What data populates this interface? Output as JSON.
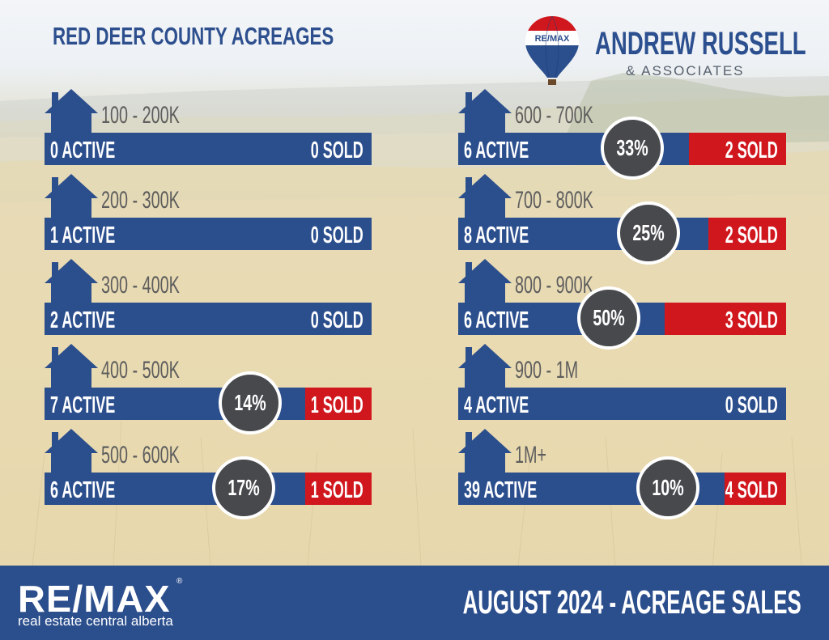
{
  "title": "RED DEER COUNTY ACREAGES",
  "brand": {
    "name": "ANDREW RUSSELL",
    "subtitle": "& ASSOCIATES",
    "balloon_text": "RE/MAX"
  },
  "rows": [
    {
      "range": "100 - 200K",
      "active": "0 ACTIVE",
      "sold": "0 SOLD",
      "percent": ""
    },
    {
      "range": "200 - 300K",
      "active": "1 ACTIVE",
      "sold": "0 SOLD",
      "percent": ""
    },
    {
      "range": "300 - 400K",
      "active": "2 ACTIVE",
      "sold": "0 SOLD",
      "percent": ""
    },
    {
      "range": "400 - 500K",
      "active": "7 ACTIVE",
      "sold": "1 SOLD",
      "percent": "14%"
    },
    {
      "range": "500 - 600K",
      "active": "6 ACTIVE",
      "sold": "1 SOLD",
      "percent": "17%"
    },
    {
      "range": "600 - 700K",
      "active": "6 ACTIVE",
      "sold": "2 SOLD",
      "percent": "33%"
    },
    {
      "range": "700 - 800K",
      "active": "8 ACTIVE",
      "sold": "2 SOLD",
      "percent": "25%"
    },
    {
      "range": "800 - 900K",
      "active": "6 ACTIVE",
      "sold": "3 SOLD",
      "percent": "50%"
    },
    {
      "range": "900 - 1M",
      "active": "4 ACTIVE",
      "sold": "0 SOLD",
      "percent": ""
    },
    {
      "range": "1M+",
      "active": "39 ACTIVE",
      "sold": "4 SOLD",
      "percent": "10%"
    }
  ],
  "footer": {
    "logo": "RE/MAX",
    "registered": "®",
    "tagline": "real estate central alberta",
    "title": "AUGUST 2024 - ACREAGE SALES"
  },
  "colors": {
    "blue": "#2b4e8d",
    "red": "#d1171e",
    "circle": "#47494d",
    "title": "#2d4f8e"
  },
  "icons": {
    "house": "house-icon",
    "balloon": "hot-air-balloon-icon"
  }
}
